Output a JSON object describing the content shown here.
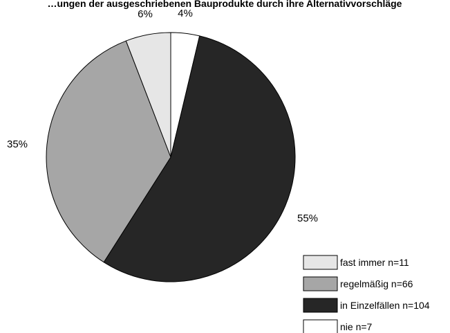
{
  "chart_data": {
    "type": "pie",
    "title": "…ungen der ausgeschriebenen Bauprodukte durch ihre Alternativvorschläge",
    "slices": [
      {
        "label": "nie n=7",
        "value": 7,
        "percent_label": "4%",
        "color": "#ffffff"
      },
      {
        "label": "in Einzelfällen n=104",
        "value": 104,
        "percent_label": "55%",
        "color": "#262626"
      },
      {
        "label": "regelmäßig n=66",
        "value": 66,
        "percent_label": "35%",
        "color": "#a6a6a6"
      },
      {
        "label": "fast immer n=11",
        "value": 11,
        "percent_label": "6%",
        "color": "#e6e6e6"
      }
    ],
    "legend": [
      {
        "label": "fast immer n=11",
        "color": "#e6e6e6"
      },
      {
        "label": "regelmäßig n=66",
        "color": "#a6a6a6"
      },
      {
        "label": "in Einzelfällen n=104",
        "color": "#262626"
      },
      {
        "label": "nie n=7",
        "color": "#ffffff"
      }
    ],
    "legend_position": "bottom-right",
    "start_angle": "12 o'clock",
    "direction": "clockwise"
  }
}
